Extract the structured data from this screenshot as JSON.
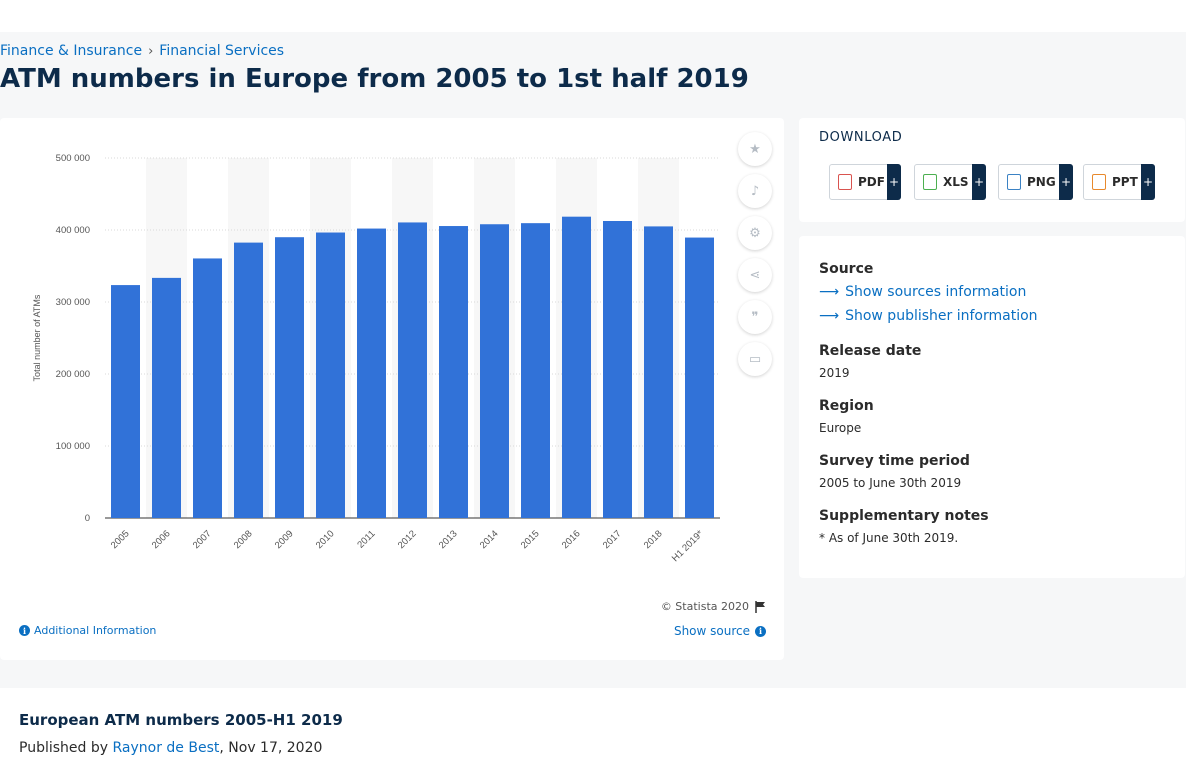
{
  "breadcrumb": {
    "items": [
      "Finance & Insurance",
      "Financial Services"
    ],
    "separator": "›"
  },
  "page_title": "ATM numbers in Europe from 2005 to 1st half 2019",
  "chart": {
    "copyright": "© Statista 2020",
    "additional_info": "Additional Information",
    "show_source": "Show source",
    "bar_color": "#3172d8"
  },
  "chart_data": {
    "type": "bar",
    "categories": [
      "2005",
      "2006",
      "2007",
      "2008",
      "2009",
      "2010",
      "2011",
      "2012",
      "2013",
      "2014",
      "2015",
      "2016",
      "2017",
      "2018",
      "H1 2019*"
    ],
    "values": [
      323500,
      333500,
      360500,
      382500,
      390000,
      396500,
      402000,
      410500,
      405500,
      408000,
      409500,
      418500,
      412500,
      405000,
      389500
    ],
    "ylabel": "Total number of ATMs",
    "ylim": [
      0,
      500000
    ],
    "yticks": [
      "0",
      "100 000",
      "200 000",
      "300 000",
      "400 000",
      "500 000"
    ],
    "grid": true
  },
  "tools": [
    "star-icon",
    "bell-icon",
    "gear-icon",
    "share-icon",
    "quote-icon",
    "print-icon"
  ],
  "download": {
    "title": "DOWNLOAD",
    "buttons": [
      {
        "label": "PDF",
        "icon": "pdf-icon",
        "color": "#d9534f"
      },
      {
        "label": "XLS",
        "icon": "xls-icon",
        "color": "#4caf50"
      },
      {
        "label": "PNG",
        "icon": "png-icon",
        "color": "#3b82c4"
      },
      {
        "label": "PPT",
        "icon": "ppt-icon",
        "color": "#e8892c"
      }
    ],
    "plus": "+"
  },
  "meta": {
    "source_heading": "Source",
    "show_sources": "Show sources information",
    "show_publisher": "Show publisher information",
    "release_date_heading": "Release date",
    "release_date": "2019",
    "region_heading": "Region",
    "region": "Europe",
    "survey_heading": "Survey time period",
    "survey_period": "2005 to June 30th 2019",
    "notes_heading": "Supplementary notes",
    "notes": "* As of June 30th 2019."
  },
  "bottom": {
    "title": "European ATM numbers 2005-H1 2019",
    "published_by": "Published by",
    "author": "Raynor de Best",
    "date": ", Nov 17, 2020"
  }
}
